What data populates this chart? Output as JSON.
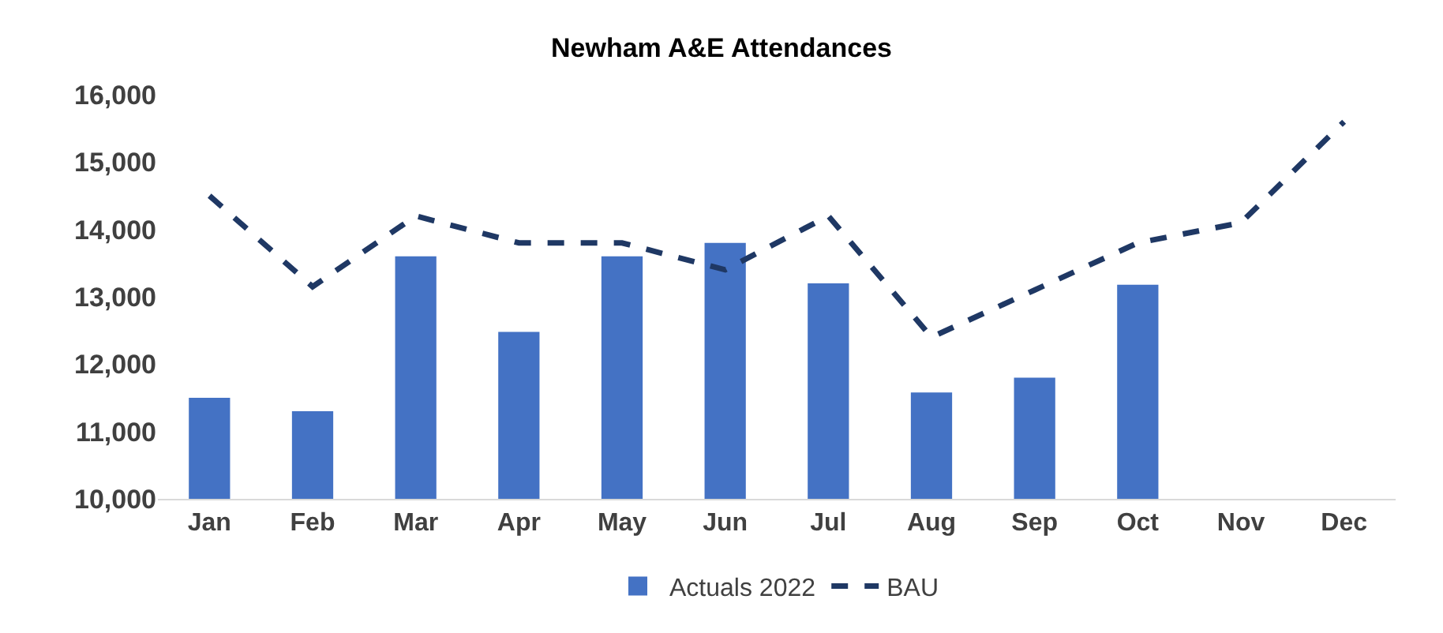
{
  "chart_data": {
    "type": "bar",
    "title": "Newham A&E Attendances",
    "categories": [
      "Jan",
      "Feb",
      "Mar",
      "Apr",
      "May",
      "Jun",
      "Jul",
      "Aug",
      "Sep",
      "Oct",
      "Nov",
      "Dec"
    ],
    "series": [
      {
        "name": "Actuals 2022",
        "color": "#4472c4",
        "values": [
          11500,
          11300,
          13600,
          12480,
          13600,
          13800,
          13200,
          11580,
          11800,
          13180,
          null,
          null
        ]
      },
      {
        "name": "BAU",
        "type": "line",
        "color": "#1f3864",
        "line_style": "dashed",
        "values": [
          14500,
          13150,
          14200,
          13800,
          13800,
          13400,
          14200,
          12400,
          13100,
          13800,
          14100,
          15600
        ]
      }
    ],
    "ylim": [
      10000,
      16000
    ],
    "yticks": [
      {
        "value": 10000,
        "label": "10,000"
      },
      {
        "value": 11000,
        "label": "11,000"
      },
      {
        "value": 12000,
        "label": "12,000"
      },
      {
        "value": 13000,
        "label": "13,000"
      },
      {
        "value": 14000,
        "label": "14,000"
      },
      {
        "value": 15000,
        "label": "15,000"
      },
      {
        "value": 16000,
        "label": "16,000"
      }
    ],
    "grid": false,
    "legend": "bottom"
  }
}
